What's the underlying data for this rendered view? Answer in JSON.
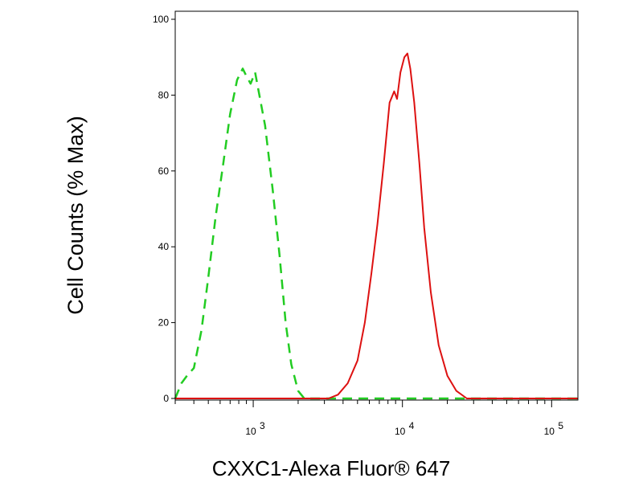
{
  "chart_data": {
    "type": "line",
    "xlabel": "CXXC1-Alexa Fluor® 647",
    "ylabel": "Cell Counts (% Max)",
    "x_scale": "log",
    "xlim": [
      300,
      150000
    ],
    "ylim": [
      0,
      100
    ],
    "y_ticks": [
      0,
      20,
      40,
      60,
      80,
      100
    ],
    "x_ticks": [
      {
        "value": 1000,
        "label_base": "10",
        "label_exp": "3"
      },
      {
        "value": 10000,
        "label_base": "10",
        "label_exp": "4"
      },
      {
        "value": 100000,
        "label_base": "10",
        "label_exp": "5"
      }
    ],
    "grid": false,
    "series": [
      {
        "color": "#22cc22",
        "dash": "dashed",
        "points": [
          [
            300,
            0
          ],
          [
            330,
            4
          ],
          [
            360,
            6
          ],
          [
            400,
            8
          ],
          [
            450,
            18
          ],
          [
            500,
            32
          ],
          [
            560,
            48
          ],
          [
            630,
            62
          ],
          [
            700,
            75
          ],
          [
            780,
            84
          ],
          [
            850,
            87
          ],
          [
            900,
            85
          ],
          [
            960,
            83
          ],
          [
            1030,
            86
          ],
          [
            1100,
            80
          ],
          [
            1200,
            72
          ],
          [
            1350,
            55
          ],
          [
            1500,
            38
          ],
          [
            1650,
            20
          ],
          [
            1800,
            9
          ],
          [
            2000,
            2
          ],
          [
            2200,
            0
          ],
          [
            3000,
            0
          ],
          [
            150000,
            0
          ]
        ]
      },
      {
        "color": "#dd1111",
        "dash": "solid",
        "points": [
          [
            300,
            0
          ],
          [
            3200,
            0
          ],
          [
            3700,
            1
          ],
          [
            4300,
            4
          ],
          [
            5000,
            10
          ],
          [
            5600,
            20
          ],
          [
            6200,
            33
          ],
          [
            6800,
            46
          ],
          [
            7500,
            62
          ],
          [
            8200,
            78
          ],
          [
            8800,
            81
          ],
          [
            9200,
            79
          ],
          [
            9700,
            86
          ],
          [
            10300,
            90
          ],
          [
            10800,
            91
          ],
          [
            11300,
            87
          ],
          [
            12000,
            78
          ],
          [
            13000,
            62
          ],
          [
            14000,
            45
          ],
          [
            15500,
            28
          ],
          [
            17500,
            14
          ],
          [
            20000,
            6
          ],
          [
            23000,
            2
          ],
          [
            27000,
            0
          ],
          [
            150000,
            0
          ]
        ]
      }
    ]
  }
}
